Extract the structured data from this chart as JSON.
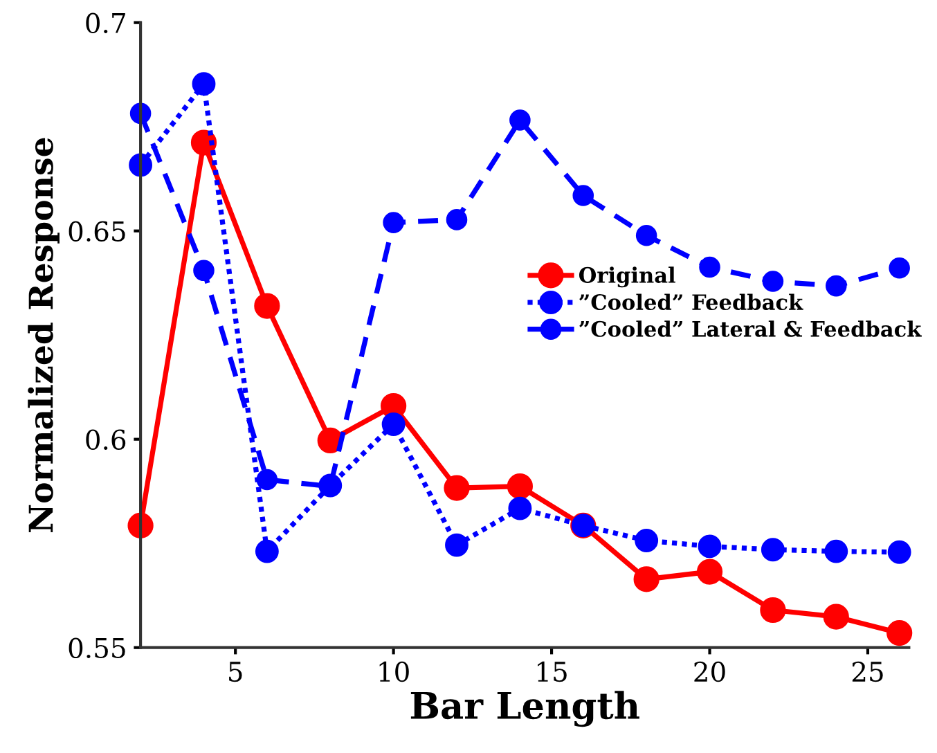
{
  "chart_data": {
    "type": "line",
    "xlabel": "Bar Length",
    "ylabel": "Normalized Response",
    "x": [
      2,
      4,
      6,
      8,
      10,
      12,
      14,
      16,
      18,
      20,
      22,
      24,
      26
    ],
    "xlim": [
      2,
      26.3
    ],
    "xticks": [
      5,
      10,
      15,
      20,
      25
    ],
    "ylim": [
      0.55,
      0.7
    ],
    "yticks": [
      0.55,
      0.6,
      0.65,
      0.7
    ],
    "grid": false,
    "legend": "right",
    "marker": "circle",
    "series": [
      {
        "name": "Original",
        "color": "#ff0000",
        "line_style": "solid",
        "values": [
          0.5793,
          0.6712,
          0.632,
          0.5997,
          0.608,
          0.5883,
          0.5887,
          0.5793,
          0.5664,
          0.5682,
          0.559,
          0.5574,
          0.5535
        ]
      },
      {
        "name": "”Cooled” Feedback",
        "color": "#0000ff",
        "line_style": "dotted",
        "values": [
          0.6658,
          0.6853,
          0.5731,
          0.5889,
          0.6036,
          0.5746,
          0.5834,
          0.5793,
          0.5757,
          0.5743,
          0.5735,
          0.5731,
          0.5729
        ]
      },
      {
        "name": "”Cooled” Lateral & Feedback",
        "color": "#0000ff",
        "line_style": "dashed",
        "values": [
          0.6782,
          0.6405,
          0.5903,
          0.5887,
          0.652,
          0.6527,
          0.6766,
          0.6585,
          0.6489,
          0.6413,
          0.6379,
          0.6368,
          0.6411
        ]
      }
    ]
  }
}
